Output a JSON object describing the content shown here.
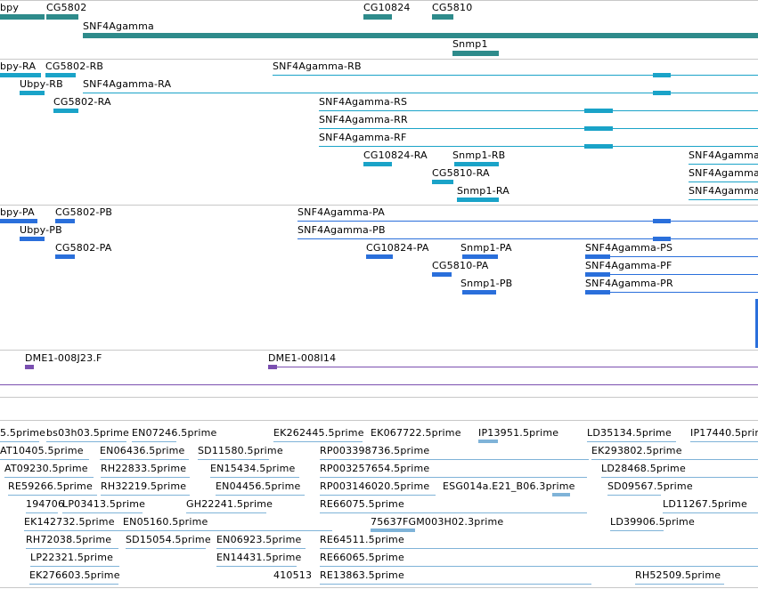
{
  "colors": {
    "gene": "#2e8b8b",
    "transcript": "#1aa3c8",
    "protein": "#2a6fdb",
    "clone": "#7a4fb0",
    "est": "#7fb3d8",
    "separator": "#c8c8c8"
  },
  "tracks": {
    "genes": [
      "bpy",
      "CG5802",
      "CG10824",
      "CG5810",
      "SNF4Agamma",
      "Snmp1"
    ],
    "transcripts": [
      "bpy-RA",
      "CG5802-RB",
      "SNF4Agamma-RB",
      "Ubpy-RB",
      "SNF4Agamma-RA",
      "CG5802-RA",
      "SNF4Agamma-RS",
      "SNF4Agamma-RR",
      "SNF4Agamma-RF",
      "CG10824-RA",
      "Snmp1-RB",
      "SNF4Agamma",
      "CG5810-RA",
      "SNF4Agamma",
      "Snmp1-RA",
      "SNF4Agamma"
    ],
    "proteins": [
      "bpy-PA",
      "CG5802-PB",
      "SNF4Agamma-PA",
      "Ubpy-PB",
      "SNF4Agamma-PB",
      "CG5802-PA",
      "CG10824-PA",
      "Snmp1-PA",
      "SNF4Agamma-PS",
      "CG5810-PA",
      "SNF4Agamma-PF",
      "Snmp1-PB",
      "SNF4Agamma-PR"
    ],
    "clones": [
      "DME1-008J23.F",
      "DME1-008I14"
    ],
    "ests": [
      "5.5prime",
      "bs03h03.5prime",
      "EN07246.5prime",
      "EK262445.5prime",
      "EK067722.5prime",
      "IP13951.5prime",
      "LD35134.5prime",
      "IP17440.5prime",
      "AT10405.5prime",
      "EN06436.5prime",
      "SD11580.5prime",
      "RP003398736.5prime",
      "EK293802.5prime",
      "AT09230.5prime",
      "RH22833.5prime",
      "EN15434.5prime",
      "RP003257654.5prime",
      "LD28468.5prime",
      "RE59266.5prime",
      "RH32219.5prime",
      "EN04456.5prime",
      "RP003146020.5prime",
      "ESG014a.E21_B06.3prime",
      "SD09567.5prime",
      "194706",
      "LP03413.5prime",
      "GH22241.5prime",
      "RE66075.5prime",
      "LD11267.5prime",
      "EK142732.5prime",
      "EN05160.5prime",
      "75637FGM003H02.3prime",
      "LD39906.5prime",
      "RH72038.5prime",
      "SD15054.5prime",
      "EN06923.5prime",
      "RE64511.5prime",
      "LP22321.5prime",
      "EN14431.5prime",
      "RE66065.5prime",
      "EK276603.5prime",
      "410513",
      "RE13863.5prime",
      "RH52509.5prime"
    ]
  }
}
